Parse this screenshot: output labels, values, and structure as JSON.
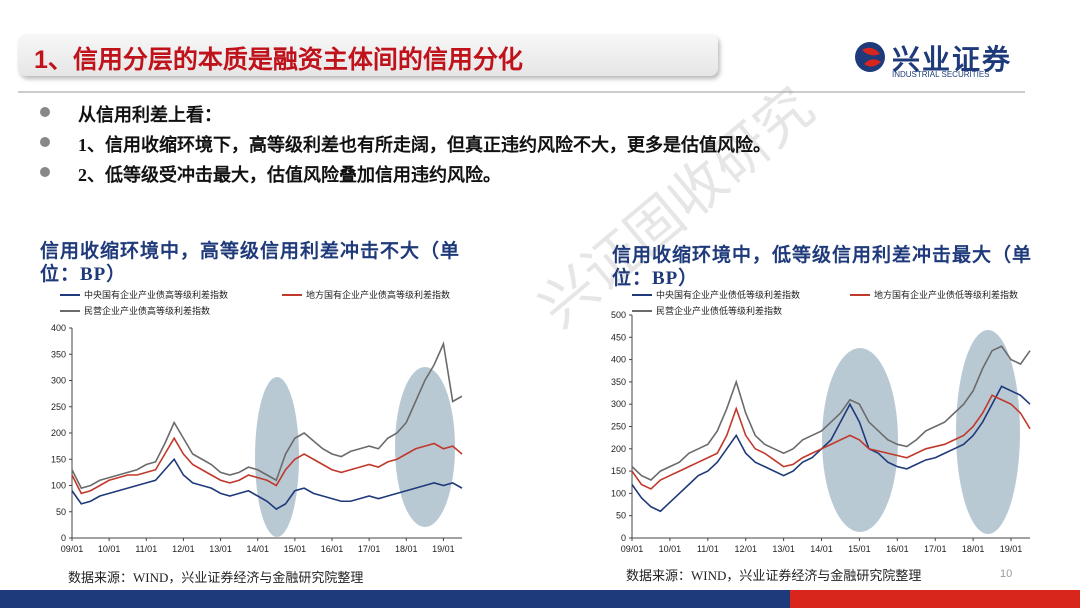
{
  "header": {
    "title": "1、信用分层的本质是融资主体间的信用分化",
    "logo": "兴业证券",
    "logo_en": "INDUSTRIAL SECURITIES"
  },
  "bullets": [
    "从信用利差上看：",
    "1、信用收缩环境下，高等级利差也有所走阔，但真正违约风险不大，更多是估值风险。",
    "2、低等级受冲击最大，估值风险叠加信用违约风险。"
  ],
  "watermark": "兴证固收研究",
  "page_number": "10",
  "chart_data": [
    {
      "type": "line",
      "title": "信用收缩环境中，高等级信用利差冲击不大（单位：BP）",
      "source": "数据来源：WIND，兴业证券经济与金融研究院整理",
      "x": [
        "09/01",
        "09/04",
        "09/07",
        "09/10",
        "10/01",
        "10/04",
        "10/07",
        "10/10",
        "11/01",
        "11/04",
        "11/07",
        "11/10",
        "12/01",
        "12/04",
        "12/07",
        "12/10",
        "13/01",
        "13/04",
        "13/07",
        "13/10",
        "14/01",
        "14/04",
        "14/07",
        "14/10",
        "15/01",
        "15/04",
        "15/07",
        "15/10",
        "16/01",
        "16/04",
        "16/07",
        "16/10",
        "17/01",
        "17/04",
        "17/07",
        "17/10",
        "18/01",
        "18/04",
        "18/07",
        "18/10",
        "19/01",
        "19/04",
        "19/07"
      ],
      "xticks": [
        "09/01",
        "10/01",
        "11/01",
        "12/01",
        "13/01",
        "14/01",
        "15/01",
        "16/01",
        "17/01",
        "18/01",
        "19/01"
      ],
      "ylim": [
        0,
        400
      ],
      "yticks": [
        0,
        50,
        100,
        150,
        200,
        250,
        300,
        350,
        400
      ],
      "series": [
        {
          "name": "中央国有企业产业债高等级利差指数",
          "color": "#1f3a7a",
          "values": [
            90,
            65,
            70,
            80,
            85,
            90,
            95,
            100,
            105,
            110,
            130,
            150,
            120,
            105,
            100,
            95,
            85,
            80,
            85,
            90,
            80,
            70,
            55,
            65,
            90,
            95,
            85,
            80,
            75,
            70,
            70,
            75,
            80,
            75,
            80,
            85,
            90,
            95,
            100,
            105,
            100,
            105,
            95
          ]
        },
        {
          "name": "地方国有企业产业债高等级利差指数",
          "color": "#c0392b",
          "values": [
            120,
            85,
            90,
            100,
            110,
            115,
            120,
            120,
            125,
            130,
            160,
            190,
            160,
            140,
            130,
            120,
            110,
            105,
            110,
            120,
            115,
            110,
            100,
            130,
            150,
            160,
            150,
            140,
            130,
            125,
            130,
            135,
            140,
            135,
            145,
            150,
            160,
            170,
            175,
            180,
            170,
            175,
            160
          ]
        },
        {
          "name": "民营企业产业债高等级利差指数",
          "color": "#6b6b6b",
          "values": [
            130,
            95,
            100,
            110,
            115,
            120,
            125,
            130,
            140,
            145,
            180,
            220,
            190,
            160,
            150,
            140,
            125,
            120,
            125,
            135,
            130,
            120,
            110,
            160,
            190,
            200,
            185,
            170,
            160,
            155,
            165,
            170,
            175,
            170,
            190,
            200,
            220,
            260,
            300,
            330,
            370,
            260,
            270
          ]
        }
      ]
    },
    {
      "type": "line",
      "title": "信用收缩环境中，低等级信用利差冲击最大（单位：BP）",
      "source": "数据来源：WIND，兴业证券经济与金融研究院整理",
      "x": [
        "09/01",
        "09/04",
        "09/07",
        "09/10",
        "10/01",
        "10/04",
        "10/07",
        "10/10",
        "11/01",
        "11/04",
        "11/07",
        "11/10",
        "12/01",
        "12/04",
        "12/07",
        "12/10",
        "13/01",
        "13/04",
        "13/07",
        "13/10",
        "14/01",
        "14/04",
        "14/07",
        "14/10",
        "15/01",
        "15/04",
        "15/07",
        "15/10",
        "16/01",
        "16/04",
        "16/07",
        "16/10",
        "17/01",
        "17/04",
        "17/07",
        "17/10",
        "18/01",
        "18/04",
        "18/07",
        "18/10",
        "19/01",
        "19/04",
        "19/07"
      ],
      "xticks": [
        "09/01",
        "10/01",
        "11/01",
        "12/01",
        "13/01",
        "14/01",
        "15/01",
        "16/01",
        "17/01",
        "18/01",
        "19/01"
      ],
      "ylim": [
        0,
        500
      ],
      "yticks": [
        0,
        50,
        100,
        150,
        200,
        250,
        300,
        350,
        400,
        450,
        500
      ],
      "series": [
        {
          "name": "中央国有企业产业债低等级利差指数",
          "color": "#1f3a7a",
          "values": [
            120,
            90,
            70,
            60,
            80,
            100,
            120,
            140,
            150,
            170,
            200,
            230,
            190,
            170,
            160,
            150,
            140,
            150,
            170,
            180,
            200,
            220,
            260,
            300,
            260,
            200,
            190,
            170,
            160,
            155,
            165,
            175,
            180,
            190,
            200,
            210,
            230,
            260,
            300,
            340,
            330,
            320,
            300
          ]
        },
        {
          "name": "地方国有企业产业债低等级利差指数",
          "color": "#c0392b",
          "values": [
            150,
            120,
            110,
            130,
            140,
            150,
            160,
            170,
            180,
            190,
            230,
            290,
            230,
            200,
            190,
            175,
            160,
            165,
            180,
            190,
            200,
            210,
            220,
            230,
            220,
            200,
            195,
            190,
            185,
            180,
            190,
            200,
            205,
            210,
            220,
            230,
            250,
            280,
            320,
            310,
            300,
            280,
            245
          ]
        },
        {
          "name": "民营企业产业债低等级利差指数",
          "color": "#6b6b6b",
          "values": [
            160,
            140,
            130,
            150,
            160,
            170,
            190,
            200,
            210,
            240,
            290,
            350,
            280,
            230,
            210,
            200,
            190,
            200,
            220,
            230,
            240,
            260,
            280,
            310,
            300,
            260,
            240,
            220,
            210,
            205,
            220,
            240,
            250,
            260,
            280,
            300,
            330,
            380,
            420,
            430,
            400,
            390,
            420
          ]
        }
      ]
    }
  ]
}
